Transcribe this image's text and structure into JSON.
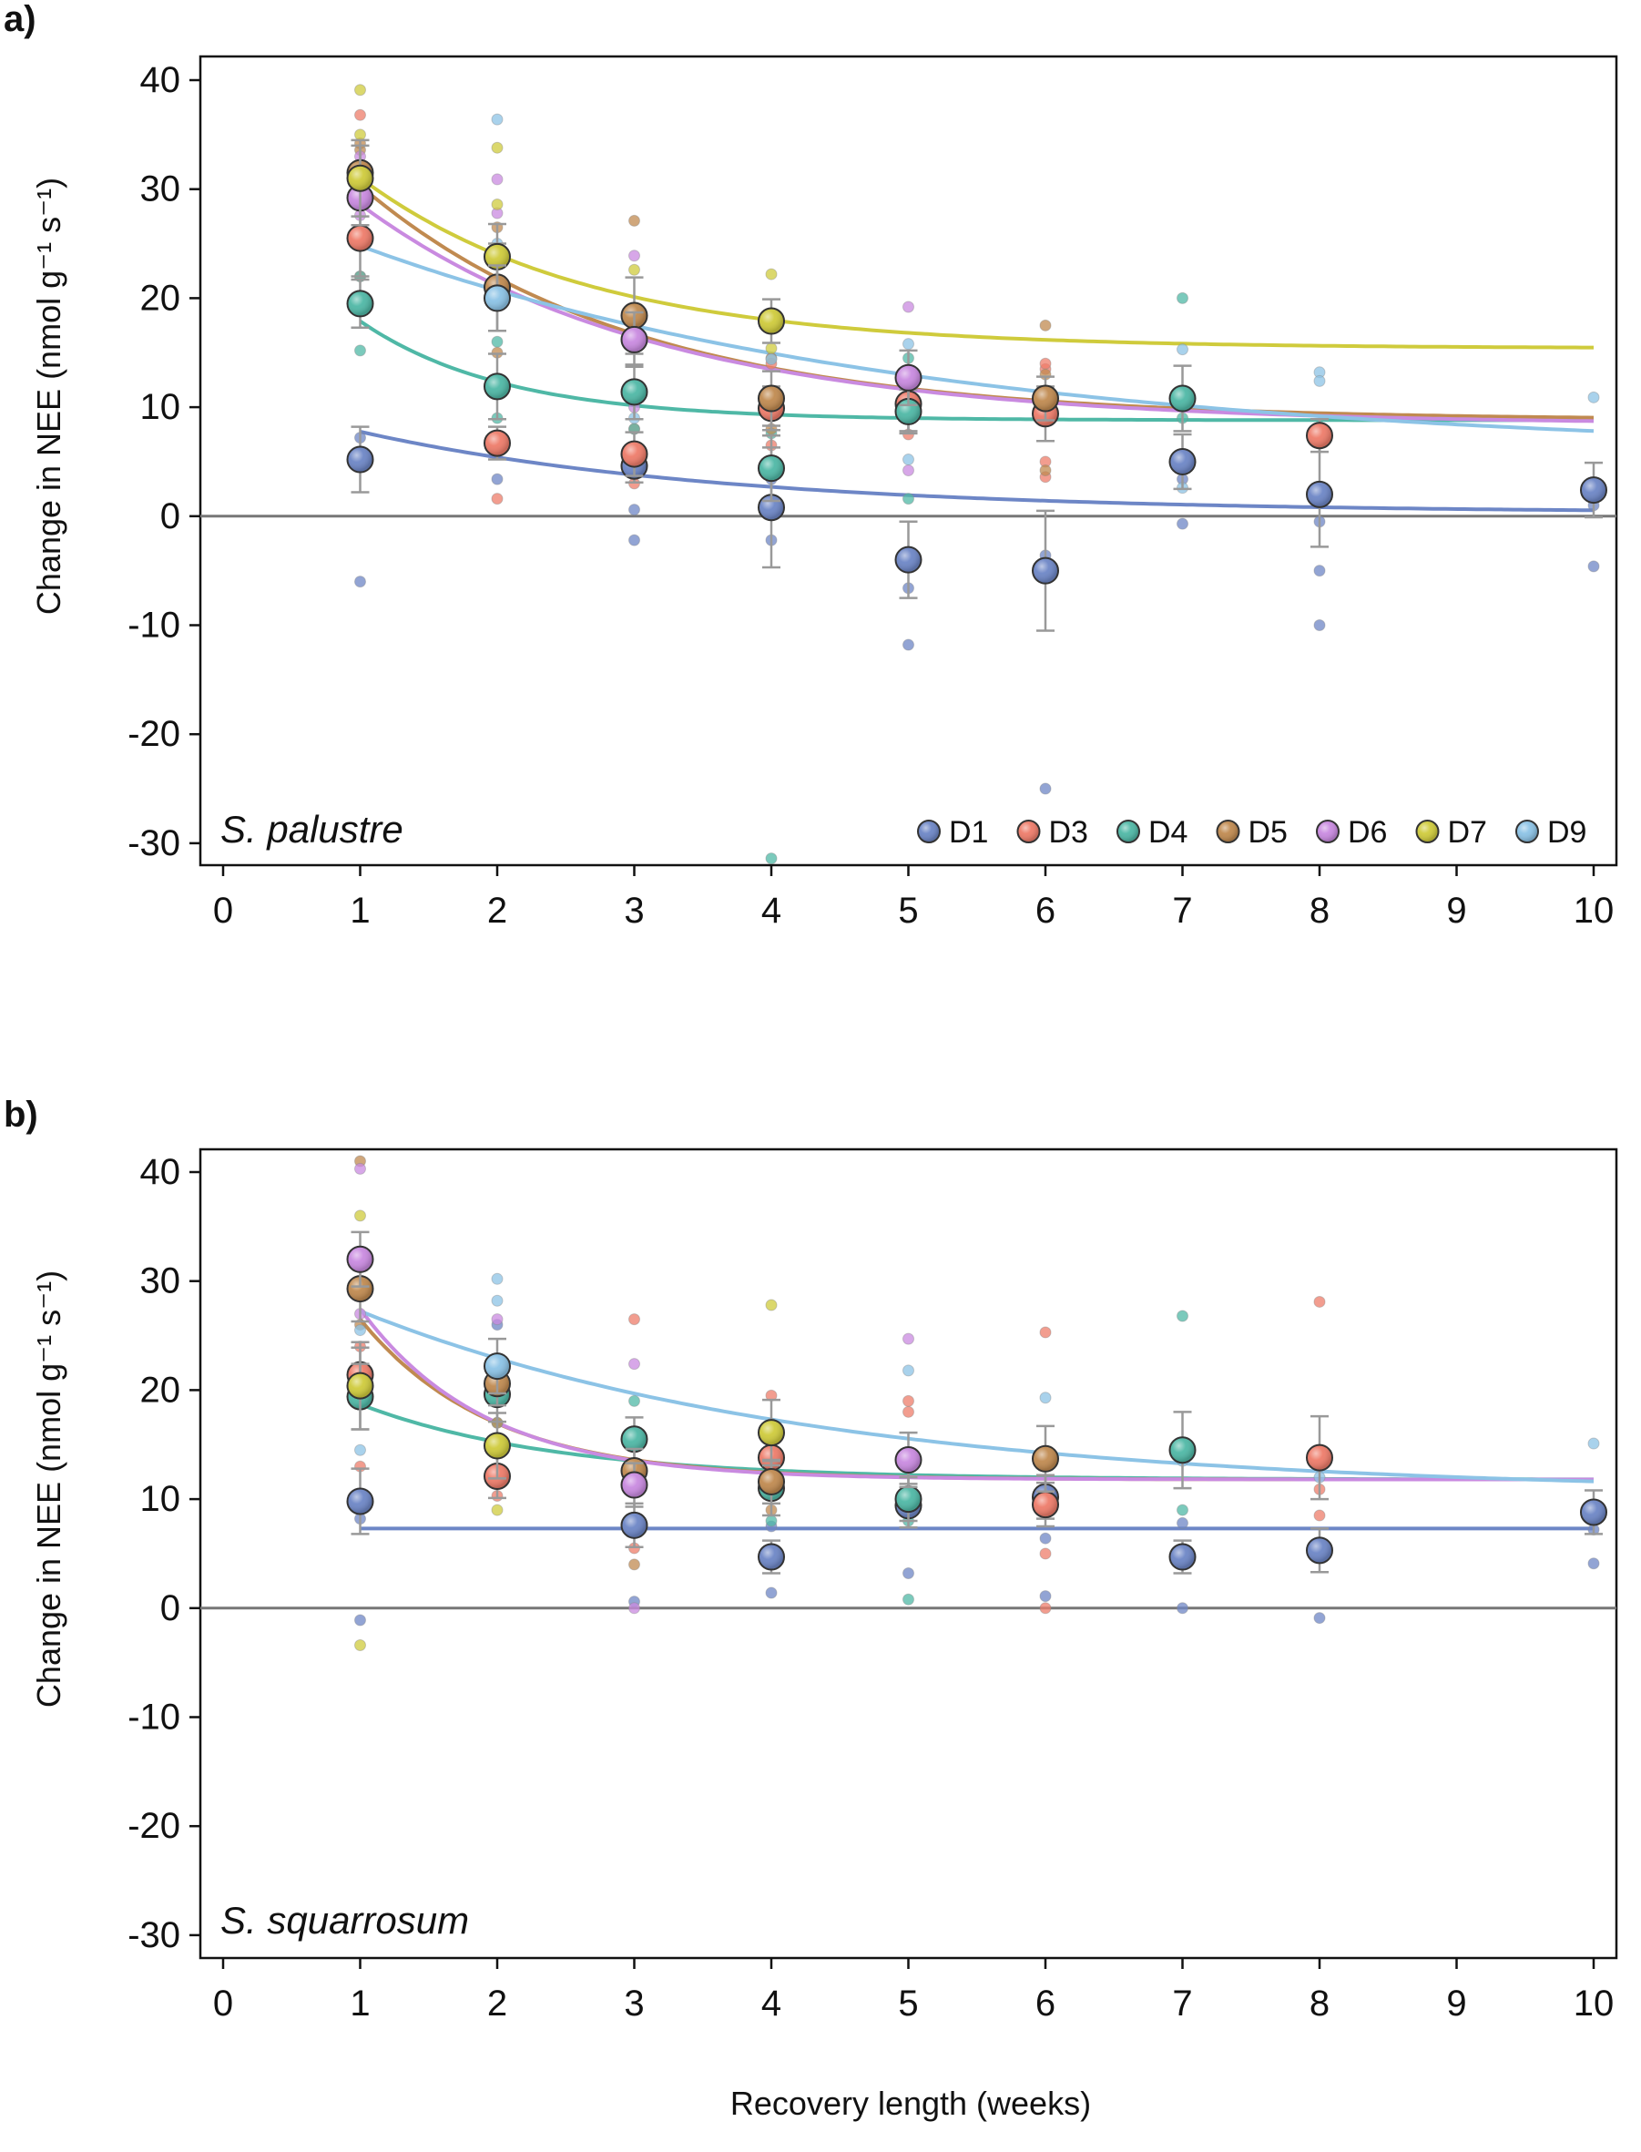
{
  "xlabel": "Recovery length (weeks)",
  "ylabel": "Change in NEE (nmol g⁻¹ s⁻¹)",
  "colors": {
    "D1": "#6d86c6",
    "D3": "#ee7c6a",
    "D4": "#4fb8a6",
    "D5": "#c08a50",
    "D6": "#c98ae0",
    "D7": "#cfcb3c",
    "D9": "#8cc3e6",
    "zero_line": "#777777",
    "error_bar": "#999999",
    "frame": "#111111"
  },
  "legend": [
    "D1",
    "D3",
    "D4",
    "D5",
    "D6",
    "D7",
    "D9"
  ],
  "chart_data": [
    {
      "type": "scatter",
      "panel": "a)",
      "species": "S. palustre",
      "xlim": [
        -0.15,
        10.15
      ],
      "ylim": [
        -32,
        42
      ],
      "xticks": [
        0,
        1,
        2,
        3,
        4,
        5,
        6,
        7,
        8,
        9,
        10
      ],
      "yticks": [
        -30,
        -20,
        -10,
        0,
        10,
        20,
        30,
        40
      ],
      "show_legend": true,
      "means": [
        {
          "name": "D1",
          "points": [
            [
              1,
              5.2
            ],
            [
              3,
              4.6
            ],
            [
              4,
              0.8
            ],
            [
              5,
              -4
            ],
            [
              6,
              -5
            ],
            [
              7,
              5
            ],
            [
              8,
              2
            ],
            [
              10,
              2.4
            ]
          ],
          "err": [
            3,
            1.5,
            5.5,
            3.5,
            5.5,
            2.5,
            4.8,
            2.5
          ]
        },
        {
          "name": "D3",
          "points": [
            [
              1,
              25.5
            ],
            [
              2,
              6.7
            ],
            [
              3,
              5.7
            ],
            [
              4,
              9.9
            ],
            [
              5,
              10.3
            ],
            [
              6,
              9.4
            ],
            [
              8,
              7.4
            ]
          ],
          "err": [
            3.5,
            1.5,
            2,
            2,
            2.5,
            2.5,
            1.5
          ]
        },
        {
          "name": "D4",
          "points": [
            [
              1,
              19.5
            ],
            [
              2,
              11.9
            ],
            [
              3,
              11.4
            ],
            [
              4,
              4.4
            ],
            [
              5,
              9.6
            ],
            [
              7,
              10.8
            ]
          ],
          "err": [
            2.2,
            3,
            2.5,
            3,
            2,
            3
          ]
        },
        {
          "name": "D5",
          "points": [
            [
              1,
              31.5
            ],
            [
              2,
              21
            ],
            [
              3,
              18.4
            ],
            [
              4,
              10.8
            ],
            [
              6,
              10.8
            ]
          ],
          "err": [
            2.5,
            4,
            3.5,
            2.5,
            2
          ]
        },
        {
          "name": "D6",
          "points": [
            [
              1,
              29.2
            ],
            [
              3,
              16.2
            ],
            [
              5,
              12.7
            ]
          ],
          "err": [
            2.5,
            2.5,
            2.5
          ]
        },
        {
          "name": "D7",
          "points": [
            [
              1,
              31
            ],
            [
              2,
              23.8
            ],
            [
              4,
              17.9
            ]
          ],
          "err": [
            3.5,
            3,
            2
          ]
        },
        {
          "name": "D9",
          "points": [
            [
              2,
              20
            ]
          ],
          "err": [
            3
          ]
        }
      ],
      "raw": [
        {
          "name": "D1",
          "points": [
            [
              1,
              -6
            ],
            [
              1,
              7.2
            ],
            [
              2,
              3.4
            ],
            [
              3,
              -2.2
            ],
            [
              3,
              0.6
            ],
            [
              4,
              -2.2
            ],
            [
              4,
              3.4
            ],
            [
              5,
              -11.8
            ],
            [
              5,
              -6.6
            ],
            [
              6,
              -25
            ],
            [
              6,
              -3.6
            ],
            [
              7,
              -0.7
            ],
            [
              7,
              3.4
            ],
            [
              8,
              -10
            ],
            [
              8,
              -5
            ],
            [
              8,
              -0.5
            ],
            [
              10,
              -4.6
            ],
            [
              10,
              1
            ]
          ]
        },
        {
          "name": "D3",
          "points": [
            [
              1,
              36.8
            ],
            [
              1,
              22
            ],
            [
              2,
              1.6
            ],
            [
              2,
              12
            ],
            [
              3,
              3
            ],
            [
              3,
              8
            ],
            [
              4,
              6.5
            ],
            [
              4,
              14
            ],
            [
              5,
              7.5
            ],
            [
              5,
              13
            ],
            [
              6,
              3.6
            ],
            [
              6,
              5
            ],
            [
              6,
              13.5
            ],
            [
              6,
              14
            ]
          ]
        },
        {
          "name": "D4",
          "points": [
            [
              1,
              15.2
            ],
            [
              1,
              22
            ],
            [
              2,
              9
            ],
            [
              2,
              16
            ],
            [
              3,
              8
            ],
            [
              3,
              15.5
            ],
            [
              4,
              -31.4
            ],
            [
              4,
              7.6
            ],
            [
              5,
              1.6
            ],
            [
              5,
              14.5
            ],
            [
              7,
              9
            ],
            [
              7,
              20
            ]
          ]
        },
        {
          "name": "D5",
          "points": [
            [
              1,
              33.6
            ],
            [
              1,
              34.2
            ],
            [
              2,
              15
            ],
            [
              2,
              26.5
            ],
            [
              3,
              27.1
            ],
            [
              3,
              12
            ],
            [
              4,
              8
            ],
            [
              4,
              14.5
            ],
            [
              6,
              17.5
            ],
            [
              6,
              13
            ],
            [
              6,
              4.2
            ]
          ]
        },
        {
          "name": "D6",
          "points": [
            [
              1,
              33
            ],
            [
              1,
              27.6
            ],
            [
              2,
              30.9
            ],
            [
              2,
              27.8
            ],
            [
              3,
              23.9
            ],
            [
              3,
              10
            ],
            [
              5,
              19.2
            ],
            [
              5,
              4.2
            ]
          ]
        },
        {
          "name": "D7",
          "points": [
            [
              1,
              39.1
            ],
            [
              1,
              35
            ],
            [
              2,
              33.8
            ],
            [
              2,
              28.6
            ],
            [
              3,
              22.6
            ],
            [
              4,
              22.2
            ],
            [
              4,
              15.4
            ]
          ]
        },
        {
          "name": "D9",
          "points": [
            [
              2,
              36.4
            ],
            [
              2,
              25
            ],
            [
              3,
              19
            ],
            [
              3,
              9
            ],
            [
              4,
              14.4
            ],
            [
              5,
              15.8
            ],
            [
              5,
              5.2
            ],
            [
              6,
              10
            ],
            [
              7,
              15.3
            ],
            [
              7,
              2.6
            ],
            [
              8,
              13.2
            ],
            [
              8,
              12.4
            ],
            [
              10,
              10.9
            ]
          ]
        }
      ],
      "fits": [
        {
          "name": "D1",
          "asym": 0.3,
          "amp": 10.9,
          "rate": 0.38
        },
        {
          "name": "D4",
          "asym": 8.8,
          "amp": 23.5,
          "rate": 0.95
        },
        {
          "name": "D5",
          "asym": 8.8,
          "amp": 35.5,
          "rate": 0.5
        },
        {
          "name": "D6",
          "asym": 8.4,
          "amp": 32,
          "rate": 0.46
        },
        {
          "name": "D7",
          "asym": 15.4,
          "amp": 28.5,
          "rate": 0.6
        },
        {
          "name": "D9",
          "asym": 5.6,
          "amp": 24.4,
          "rate": 0.24
        }
      ]
    },
    {
      "type": "scatter",
      "panel": "b)",
      "species": "S. squarrosum",
      "xlim": [
        -0.15,
        10.15
      ],
      "ylim": [
        -32,
        42
      ],
      "xticks": [
        0,
        1,
        2,
        3,
        4,
        5,
        6,
        7,
        8,
        9,
        10
      ],
      "yticks": [
        -30,
        -20,
        -10,
        0,
        10,
        20,
        30,
        40
      ],
      "show_legend": false,
      "means": [
        {
          "name": "D1",
          "points": [
            [
              1,
              9.8
            ],
            [
              3,
              7.6
            ],
            [
              4,
              4.7
            ],
            [
              5,
              9.4
            ],
            [
              6,
              10.2
            ],
            [
              7,
              4.7
            ],
            [
              8,
              5.3
            ],
            [
              10,
              8.8
            ]
          ],
          "err": [
            3,
            2,
            1.5,
            2,
            2,
            1.5,
            2,
            2
          ]
        },
        {
          "name": "D3",
          "points": [
            [
              1,
              21.4
            ],
            [
              2,
              12.1
            ],
            [
              4,
              13.8
            ],
            [
              6,
              9.5
            ],
            [
              8,
              13.8
            ]
          ],
          "err": [
            2.5,
            2,
            2,
            2,
            3.8
          ]
        },
        {
          "name": "D4",
          "points": [
            [
              1,
              19.4
            ],
            [
              2,
              19.6
            ],
            [
              3,
              15.5
            ],
            [
              4,
              11
            ],
            [
              5,
              10
            ],
            [
              7,
              14.5
            ]
          ],
          "err": [
            3,
            2.5,
            2,
            2.5,
            2,
            3.5
          ]
        },
        {
          "name": "D5",
          "points": [
            [
              1,
              29.3
            ],
            [
              2,
              20.6
            ],
            [
              3,
              12.6
            ],
            [
              4,
              11.6
            ],
            [
              6,
              13.7
            ]
          ],
          "err": [
            3,
            2,
            2,
            2,
            3
          ]
        },
        {
          "name": "D6",
          "points": [
            [
              1,
              32
            ],
            [
              3,
              11.3
            ],
            [
              5,
              13.6
            ]
          ],
          "err": [
            2.5,
            2,
            2.5
          ]
        },
        {
          "name": "D7",
          "points": [
            [
              1,
              20.4
            ],
            [
              2,
              14.9
            ],
            [
              4,
              16.1
            ]
          ],
          "err": [
            4,
            3,
            3
          ]
        },
        {
          "name": "D9",
          "points": [
            [
              2,
              22.2
            ]
          ],
          "err": [
            2.5
          ]
        }
      ],
      "raw": [
        {
          "name": "D1",
          "points": [
            [
              1,
              -1.1
            ],
            [
              1,
              8.2
            ],
            [
              2,
              26
            ],
            [
              3,
              0.6
            ],
            [
              4,
              1.4
            ],
            [
              4,
              7.5
            ],
            [
              5,
              3.2
            ],
            [
              6,
              1.1
            ],
            [
              6,
              6.4
            ],
            [
              7,
              0
            ],
            [
              7,
              7.8
            ],
            [
              8,
              -0.9
            ],
            [
              10,
              4.1
            ],
            [
              10,
              7.2
            ]
          ]
        },
        {
          "name": "D3",
          "points": [
            [
              1,
              13
            ],
            [
              1,
              24
            ],
            [
              2,
              10.3
            ],
            [
              3,
              26.5
            ],
            [
              3,
              5.5
            ],
            [
              4,
              19.5
            ],
            [
              5,
              19
            ],
            [
              5,
              18
            ],
            [
              6,
              25.3
            ],
            [
              6,
              0
            ],
            [
              6,
              5
            ],
            [
              8,
              28.1
            ],
            [
              8,
              8.5
            ],
            [
              8,
              10.9
            ]
          ]
        },
        {
          "name": "D4",
          "points": [
            [
              1,
              10
            ],
            [
              2,
              17
            ],
            [
              3,
              19
            ],
            [
              4,
              8
            ],
            [
              5,
              0.8
            ],
            [
              5,
              8
            ],
            [
              7,
              26.8
            ],
            [
              7,
              9
            ]
          ]
        },
        {
          "name": "D5",
          "points": [
            [
              1,
              41
            ],
            [
              1,
              26
            ],
            [
              2,
              17
            ],
            [
              3,
              4
            ],
            [
              4,
              9
            ]
          ]
        },
        {
          "name": "D6",
          "points": [
            [
              1,
              40.3
            ],
            [
              1,
              27
            ],
            [
              2,
              26.5
            ],
            [
              3,
              22.4
            ],
            [
              3,
              0
            ],
            [
              5,
              24.7
            ]
          ]
        },
        {
          "name": "D7",
          "points": [
            [
              1,
              36
            ],
            [
              1,
              -3.4
            ],
            [
              2,
              9
            ],
            [
              4,
              27.8
            ],
            [
              4,
              14
            ]
          ]
        },
        {
          "name": "D9",
          "points": [
            [
              1,
              14.5
            ],
            [
              1,
              25.5
            ],
            [
              2,
              30.2
            ],
            [
              2,
              28.2
            ],
            [
              3,
              16
            ],
            [
              4,
              16.9
            ],
            [
              5,
              21.8
            ],
            [
              6,
              19.3
            ],
            [
              7,
              13.5
            ],
            [
              8,
              12
            ],
            [
              10,
              15.1
            ]
          ]
        }
      ],
      "fits": [
        {
          "name": "D1",
          "asym": 7.3,
          "amp": 0,
          "rate": 1
        },
        {
          "name": "D4",
          "asym": 11.8,
          "amp": 13.9,
          "rate": 0.7
        },
        {
          "name": "D5",
          "asym": 11.8,
          "amp": 42,
          "rate": 1.05
        },
        {
          "name": "D6",
          "asym": 11.8,
          "amp": 47,
          "rate": 1.1
        },
        {
          "name": "D9",
          "asym": 10.5,
          "amp": 22.6,
          "rate": 0.3
        }
      ]
    }
  ]
}
